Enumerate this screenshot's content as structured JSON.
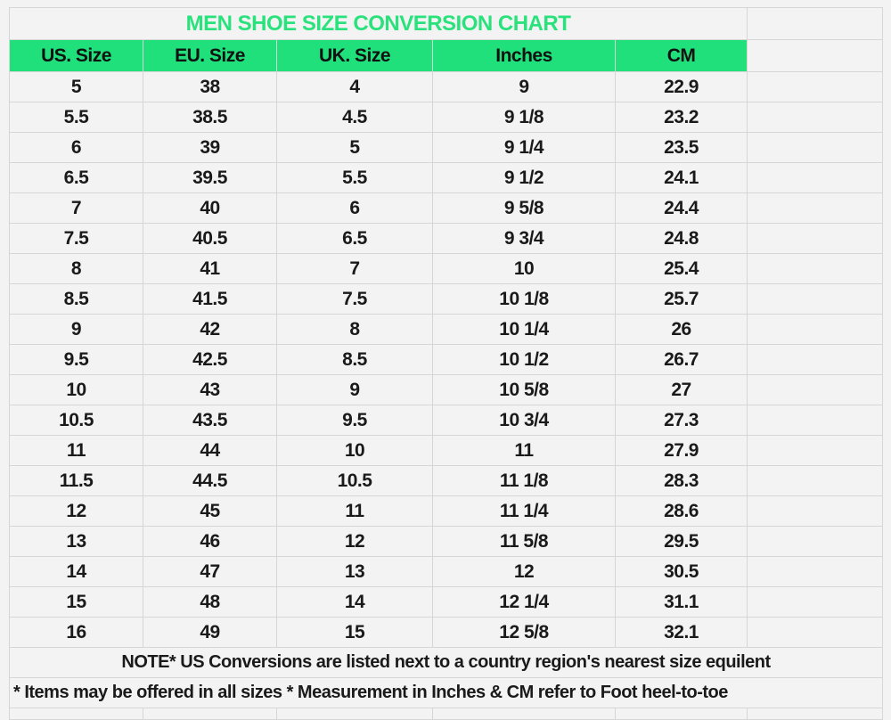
{
  "title": "MEN SHOE SIZE CONVERSION CHART",
  "colors": {
    "header_bg": "#1fe07a",
    "title_text": "#2ae27c"
  },
  "columns": [
    "US. Size",
    "EU. Size",
    "UK. Size",
    "Inches",
    "CM"
  ],
  "rows": [
    [
      "5",
      "38",
      "4",
      "9",
      "22.9"
    ],
    [
      "5.5",
      "38.5",
      "4.5",
      "9 1/8",
      "23.2"
    ],
    [
      "6",
      "39",
      "5",
      "9 1/4",
      "23.5"
    ],
    [
      "6.5",
      "39.5",
      "5.5",
      "9 1/2",
      "24.1"
    ],
    [
      "7",
      "40",
      "6",
      "9 5/8",
      "24.4"
    ],
    [
      "7.5",
      "40.5",
      "6.5",
      "9 3/4",
      "24.8"
    ],
    [
      "8",
      "41",
      "7",
      "10",
      "25.4"
    ],
    [
      "8.5",
      "41.5",
      "7.5",
      "10 1/8",
      "25.7"
    ],
    [
      "9",
      "42",
      "8",
      "10 1/4",
      "26"
    ],
    [
      "9.5",
      "42.5",
      "8.5",
      "10 1/2",
      "26.7"
    ],
    [
      "10",
      "43",
      "9",
      "10 5/8",
      "27"
    ],
    [
      "10.5",
      "43.5",
      "9.5",
      "10 3/4",
      "27.3"
    ],
    [
      "11",
      "44",
      "10",
      "11",
      "27.9"
    ],
    [
      "11.5",
      "44.5",
      "10.5",
      "11 1/8",
      "28.3"
    ],
    [
      "12",
      "45",
      "11",
      "11 1/4",
      "28.6"
    ],
    [
      "13",
      "46",
      "12",
      "11 5/8",
      "29.5"
    ],
    [
      "14",
      "47",
      "13",
      "12",
      "30.5"
    ],
    [
      "15",
      "48",
      "14",
      "12 1/4",
      "31.1"
    ],
    [
      "16",
      "49",
      "15",
      "12 5/8",
      "32.1"
    ]
  ],
  "notes": [
    "NOTE* US Conversions are listed next to a country region's nearest size equilent",
    "* Items may be offered in all sizes * Measurement in Inches & CM refer to Foot heel-to-toe"
  ]
}
